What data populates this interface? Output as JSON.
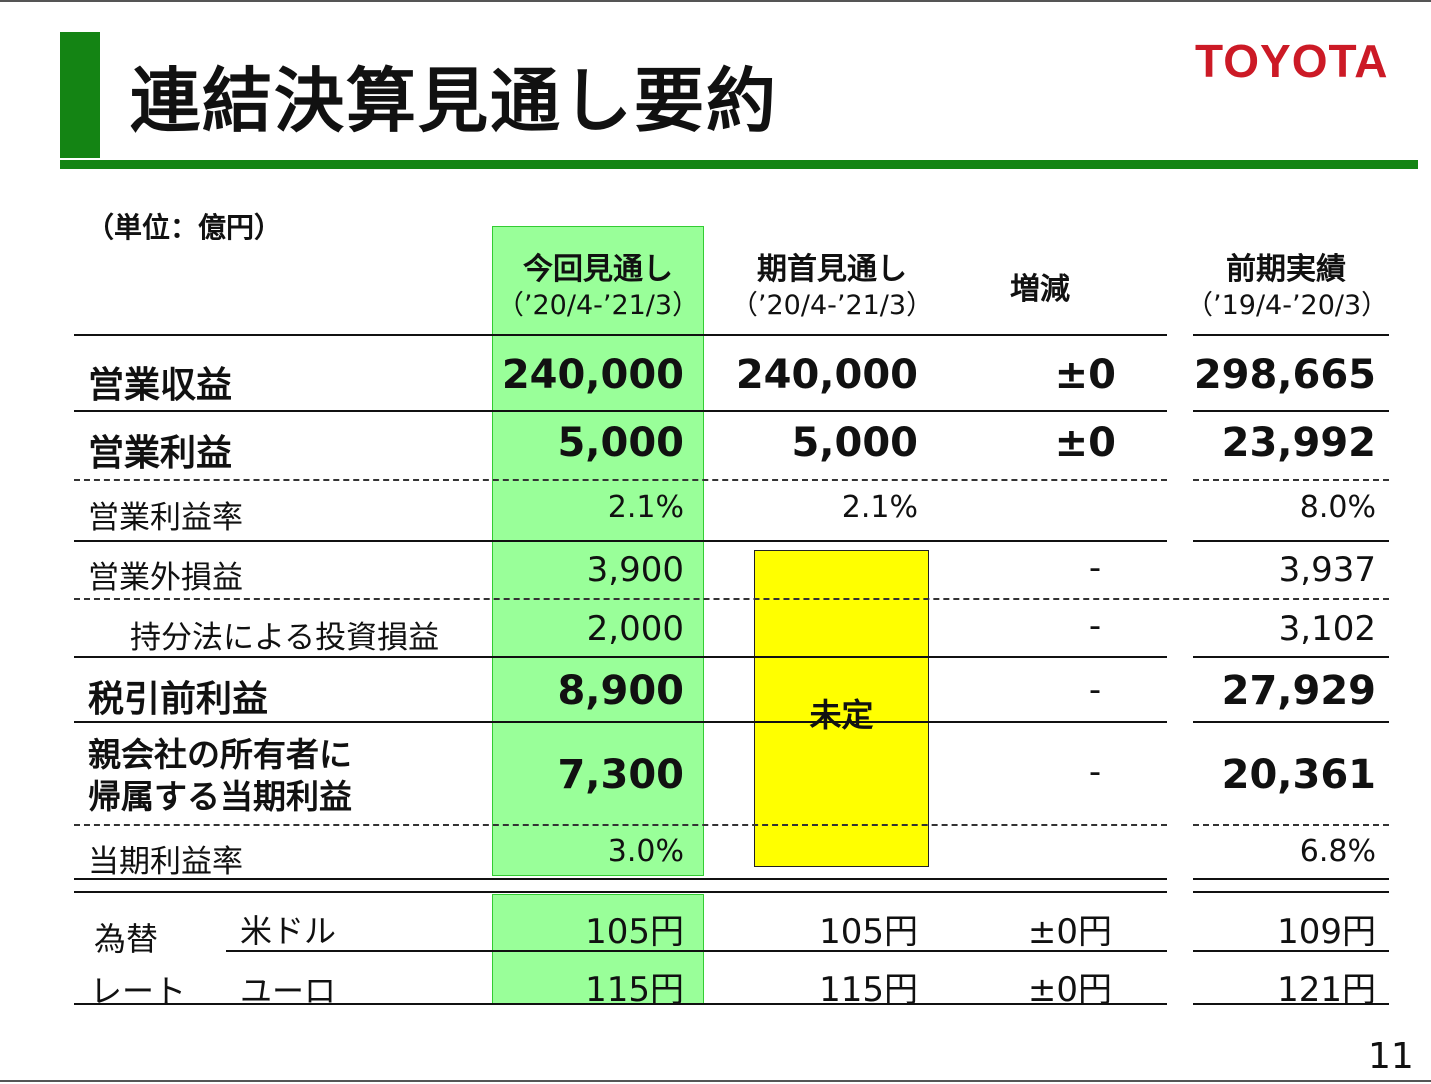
{
  "header": {
    "title": "連結決算見通し要約",
    "logo": "TOYOTA",
    "unit_note": "（単位：億円）",
    "brand_color": "#148414",
    "logo_color": "#cc1a26"
  },
  "columns": [
    {
      "label": "今回見通し",
      "sub": "（’20/4-’21/3）"
    },
    {
      "label": "期首見通し",
      "sub": "（’20/4-’21/3）"
    },
    {
      "label": "増減",
      "sub": ""
    },
    {
      "label": "前期実績",
      "sub": "（’19/4-’20/3）"
    }
  ],
  "rows": [
    {
      "label": "営業収益",
      "current": "240,000",
      "initial": "240,000",
      "change": "±0",
      "prior": "298,665"
    },
    {
      "label": "営業利益",
      "current": "5,000",
      "initial": "5,000",
      "change": "±0",
      "prior": "23,992"
    },
    {
      "label": "営業利益率",
      "current": "2.1%",
      "initial": "2.1%",
      "change": "",
      "prior": "8.0%"
    },
    {
      "label": "営業外損益",
      "current": "3,900",
      "initial": "",
      "change": "-",
      "prior": "3,937"
    },
    {
      "label": "持分法による投資損益",
      "current": "2,000",
      "initial": "",
      "change": "-",
      "prior": "3,102"
    },
    {
      "label": "税引前利益",
      "current": "8,900",
      "initial": "",
      "change": "-",
      "prior": "27,929"
    },
    {
      "label_line1": "親会社の所有者に",
      "label_line2": "帰属する当期利益",
      "current": "7,300",
      "initial": "",
      "change": "-",
      "prior": "20,361"
    },
    {
      "label": "当期利益率",
      "current": "3.0%",
      "initial": "",
      "change": "",
      "prior": "6.8%"
    }
  ],
  "undetermined_label": "未定",
  "fx": {
    "label_line1": "為替",
    "label_line2": "レート",
    "rows": [
      {
        "currency": "米ドル",
        "current": "105円",
        "initial": "105円",
        "change": "±0円",
        "prior": "109円"
      },
      {
        "currency": "ユーロ",
        "current": "115円",
        "initial": "115円",
        "change": "±0円",
        "prior": "121円"
      }
    ]
  },
  "page_number": "11",
  "colors": {
    "highlight_green": "#99ff99",
    "highlight_yellow": "#ffff00"
  }
}
